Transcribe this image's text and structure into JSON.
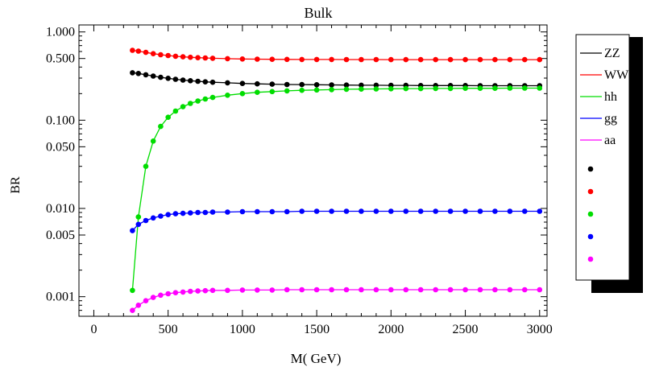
{
  "chart_data": {
    "type": "line",
    "title": "Bulk",
    "xlabel": "M( GeV)",
    "ylabel": "BR",
    "xlim": [
      -100,
      3050
    ],
    "ylim": [
      0.0006,
      1.2
    ],
    "log_y": true,
    "x_ticks": [
      0,
      500,
      1000,
      1500,
      2000,
      2500,
      3000
    ],
    "y_ticks": [
      {
        "value": 0.001,
        "label": "0.001"
      },
      {
        "value": 0.005,
        "label": "0.005"
      },
      {
        "value": 0.01,
        "label": "0.010"
      },
      {
        "value": 0.05,
        "label": "0.050"
      },
      {
        "value": 0.1,
        "label": "0.100"
      },
      {
        "value": 0.5,
        "label": "0.500"
      },
      {
        "value": 1.0,
        "label": "1.000"
      }
    ],
    "grid": false,
    "legend_position": "right-outside",
    "x": [
      260,
      300,
      350,
      400,
      450,
      500,
      550,
      600,
      650,
      700,
      750,
      800,
      900,
      1000,
      1100,
      1200,
      1300,
      1400,
      1500,
      1600,
      1700,
      1800,
      1900,
      2000,
      2100,
      2200,
      2300,
      2400,
      2500,
      2600,
      2700,
      2800,
      2900,
      3000
    ],
    "series": [
      {
        "name": "ZZ",
        "color": "#000000",
        "values": [
          0.345,
          0.338,
          0.327,
          0.316,
          0.306,
          0.298,
          0.291,
          0.285,
          0.28,
          0.276,
          0.272,
          0.269,
          0.265,
          0.261,
          0.258,
          0.256,
          0.254,
          0.253,
          0.252,
          0.251,
          0.25,
          0.249,
          0.249,
          0.248,
          0.248,
          0.247,
          0.247,
          0.247,
          0.247,
          0.246,
          0.246,
          0.246,
          0.246,
          0.246
        ]
      },
      {
        "name": "WW",
        "color": "#ff0000",
        "values": [
          0.62,
          0.607,
          0.586,
          0.567,
          0.552,
          0.54,
          0.53,
          0.522,
          0.516,
          0.511,
          0.507,
          0.503,
          0.498,
          0.494,
          0.492,
          0.49,
          0.489,
          0.488,
          0.487,
          0.487,
          0.486,
          0.486,
          0.486,
          0.485,
          0.485,
          0.485,
          0.485,
          0.485,
          0.485,
          0.485,
          0.485,
          0.485,
          0.485,
          0.485
        ]
      },
      {
        "name": "hh",
        "color": "#00dd00",
        "values": [
          0.00118,
          0.008,
          0.03,
          0.058,
          0.085,
          0.108,
          0.127,
          0.142,
          0.155,
          0.165,
          0.174,
          0.181,
          0.192,
          0.2,
          0.207,
          0.211,
          0.215,
          0.218,
          0.22,
          0.222,
          0.224,
          0.225,
          0.226,
          0.227,
          0.228,
          0.228,
          0.229,
          0.229,
          0.23,
          0.23,
          0.23,
          0.231,
          0.231,
          0.231
        ]
      },
      {
        "name": "gg",
        "color": "#0000ff",
        "values": [
          0.0056,
          0.0066,
          0.0073,
          0.0078,
          0.0082,
          0.0085,
          0.0087,
          0.0088,
          0.0089,
          0.009,
          0.009,
          0.0091,
          0.0091,
          0.0092,
          0.0092,
          0.0092,
          0.0092,
          0.0093,
          0.0093,
          0.0093,
          0.0093,
          0.0093,
          0.0093,
          0.0093,
          0.0093,
          0.0093,
          0.0093,
          0.0093,
          0.0093,
          0.0093,
          0.0093,
          0.0093,
          0.0093,
          0.0093
        ]
      },
      {
        "name": "aa",
        "color": "#ff00ff",
        "values": [
          0.0007,
          0.0008,
          0.0009,
          0.00098,
          0.00104,
          0.00108,
          0.00111,
          0.00113,
          0.00115,
          0.00116,
          0.00117,
          0.00118,
          0.00118,
          0.00119,
          0.00119,
          0.00119,
          0.0012,
          0.0012,
          0.0012,
          0.0012,
          0.0012,
          0.0012,
          0.0012,
          0.0012,
          0.0012,
          0.0012,
          0.0012,
          0.0012,
          0.0012,
          0.0012,
          0.0012,
          0.0012,
          0.0012,
          0.0012
        ]
      }
    ]
  }
}
